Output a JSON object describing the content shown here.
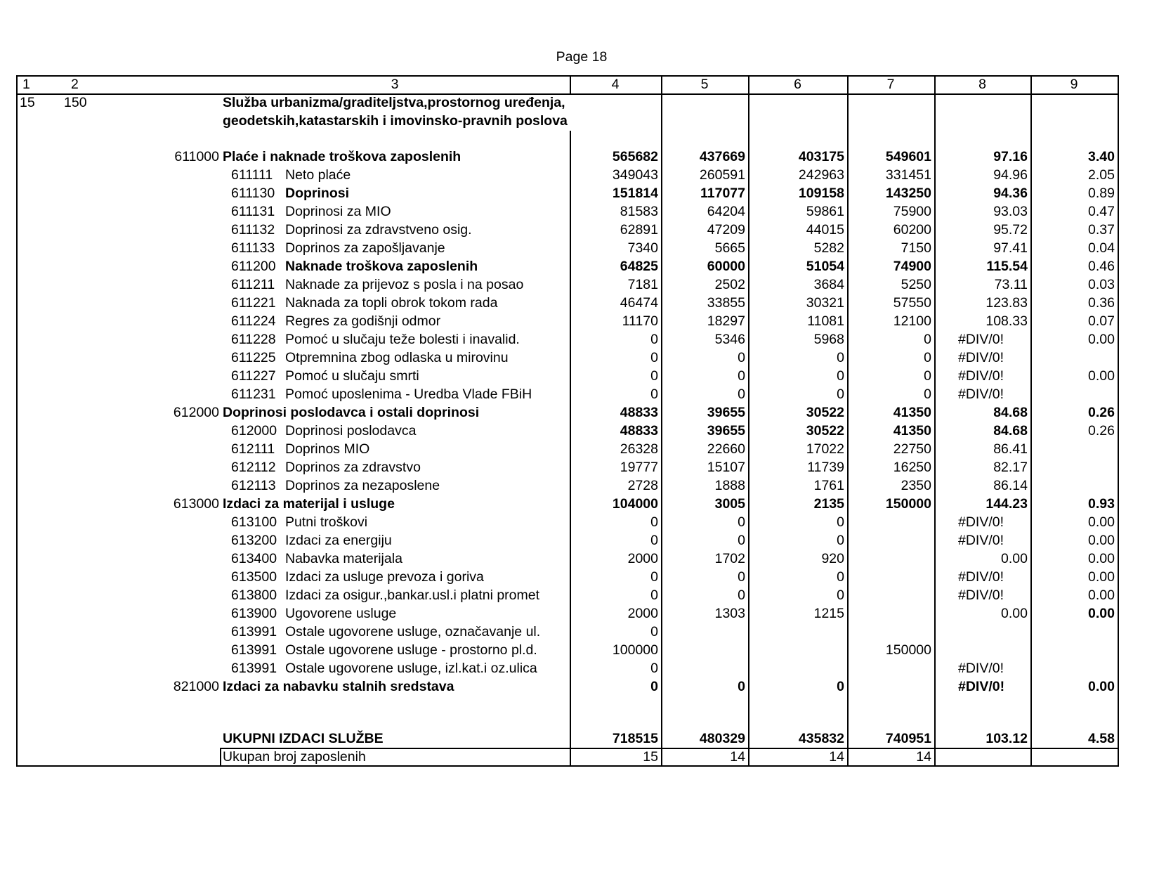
{
  "page_label": "Page 18",
  "header_columns": [
    "1",
    "2",
    "3",
    "4",
    "5",
    "6",
    "7",
    "8",
    "9"
  ],
  "section": {
    "col1": "15",
    "col2": "150",
    "title_line1": "Služba urbanizma/graditeljstva,prostornog uređenja,",
    "title_line2": "geodetskih,katastarskih i imovinsko-pravnih poslova"
  },
  "rows": [
    {
      "code": "611000",
      "label": "Plaće i naknade troškova zaposlenih",
      "level": 0,
      "bold_label": true,
      "values": [
        "565682",
        "437669",
        "403175",
        "549601",
        "97.16",
        "3.40"
      ],
      "bold_values": [
        true,
        true,
        true,
        true,
        true,
        true
      ]
    },
    {
      "code": "611111",
      "label": "Neto  plaće",
      "level": 1,
      "bold_label": false,
      "values": [
        "349043",
        "260591",
        "242963",
        "331451",
        "94.96",
        "2.05"
      ],
      "bold_values": [
        false,
        false,
        false,
        false,
        false,
        false
      ]
    },
    {
      "code": "611130",
      "label": "Doprinosi",
      "level": 1,
      "bold_label": true,
      "values": [
        "151814",
        "117077",
        "109158",
        "143250",
        "94.36",
        "0.89"
      ],
      "bold_values": [
        true,
        true,
        true,
        true,
        true,
        false
      ]
    },
    {
      "code": "611131",
      "label": "Doprinosi za MIO",
      "level": 1,
      "bold_label": false,
      "values": [
        "81583",
        "64204",
        "59861",
        "75900",
        "93.03",
        "0.47"
      ],
      "bold_values": [
        false,
        false,
        false,
        false,
        false,
        false
      ]
    },
    {
      "code": "611132",
      "label": "Doprinosi za zdravstveno osig.",
      "level": 1,
      "bold_label": false,
      "values": [
        "62891",
        "47209",
        "44015",
        "60200",
        "95.72",
        "0.37"
      ],
      "bold_values": [
        false,
        false,
        false,
        false,
        false,
        false
      ]
    },
    {
      "code": "611133",
      "label": "Doprinos za zapošljavanje",
      "level": 1,
      "bold_label": false,
      "values": [
        "7340",
        "5665",
        "5282",
        "7150",
        "97.41",
        "0.04"
      ],
      "bold_values": [
        false,
        false,
        false,
        false,
        false,
        false
      ]
    },
    {
      "code": "611200",
      "label": "Naknade troškova zaposlenih",
      "level": 1,
      "bold_label": true,
      "values": [
        "64825",
        "60000",
        "51054",
        "74900",
        "115.54",
        "0.46"
      ],
      "bold_values": [
        true,
        true,
        true,
        true,
        true,
        false
      ]
    },
    {
      "code": "611211",
      "label": "Naknade za prijevoz s posla i na posao",
      "level": 1,
      "bold_label": false,
      "values": [
        "7181",
        "2502",
        "3684",
        "5250",
        "73.11",
        "0.03"
      ],
      "bold_values": [
        false,
        false,
        false,
        false,
        false,
        false
      ]
    },
    {
      "code": "611221",
      "label": "Naknada za topli obrok tokom rada",
      "level": 1,
      "bold_label": false,
      "values": [
        "46474",
        "33855",
        "30321",
        "57550",
        "123.83",
        "0.36"
      ],
      "bold_values": [
        false,
        false,
        false,
        false,
        false,
        false
      ]
    },
    {
      "code": "611224",
      "label": "Regres za godišnji odmor",
      "level": 1,
      "bold_label": false,
      "values": [
        "11170",
        "18297",
        "11081",
        "12100",
        "108.33",
        "0.07"
      ],
      "bold_values": [
        false,
        false,
        false,
        false,
        false,
        false
      ]
    },
    {
      "code": "611228",
      "label": "Pomoć u slučaju teže bolesti i  inavalid.",
      "level": 1,
      "bold_label": false,
      "values": [
        "0",
        "5346",
        "5968",
        "0",
        "#DIV/0!",
        "0.00"
      ],
      "bold_values": [
        false,
        false,
        false,
        false,
        false,
        false
      ]
    },
    {
      "code": "611225",
      "label": "Otpremnina zbog odlaska u mirovinu",
      "level": 1,
      "bold_label": false,
      "values": [
        "0",
        "0",
        "0",
        "0",
        "#DIV/0!",
        ""
      ],
      "bold_values": [
        false,
        false,
        false,
        false,
        false,
        false
      ]
    },
    {
      "code": "611227",
      "label": "Pomoć u slučaju smrti",
      "level": 1,
      "bold_label": false,
      "values": [
        "0",
        "0",
        "0",
        "0",
        "#DIV/0!",
        "0.00"
      ],
      "bold_values": [
        false,
        false,
        false,
        false,
        false,
        false
      ]
    },
    {
      "code": "611231",
      "label": "Pomoć uposlenima - Uredba Vlade FBiH",
      "level": 1,
      "bold_label": false,
      "values": [
        "0",
        "0",
        "0",
        "0",
        "#DIV/0!",
        ""
      ],
      "bold_values": [
        false,
        false,
        false,
        false,
        false,
        false
      ]
    },
    {
      "code": "612000",
      "label": "Doprinosi poslodavca i ostali doprinosi",
      "level": 0,
      "bold_label": true,
      "values": [
        "48833",
        "39655",
        "30522",
        "41350",
        "84.68",
        "0.26"
      ],
      "bold_values": [
        true,
        true,
        true,
        true,
        true,
        true
      ]
    },
    {
      "code": "612000",
      "label": "Doprinosi poslodavca",
      "level": 1,
      "bold_label": false,
      "values": [
        "48833",
        "39655",
        "30522",
        "41350",
        "84.68",
        "0.26"
      ],
      "bold_values": [
        true,
        true,
        true,
        true,
        true,
        false
      ]
    },
    {
      "code": "612111",
      "label": "Doprinos MIO",
      "level": 1,
      "bold_label": false,
      "values": [
        "26328",
        "22660",
        "17022",
        "22750",
        "86.41",
        ""
      ],
      "bold_values": [
        false,
        false,
        false,
        false,
        false,
        false
      ]
    },
    {
      "code": "612112",
      "label": "Doprinos za zdravstvo",
      "level": 1,
      "bold_label": false,
      "values": [
        "19777",
        "15107",
        "11739",
        "16250",
        "82.17",
        ""
      ],
      "bold_values": [
        false,
        false,
        false,
        false,
        false,
        false
      ]
    },
    {
      "code": "612113",
      "label": "Doprinos za nezaposlene",
      "level": 1,
      "bold_label": false,
      "values": [
        "2728",
        "1888",
        "1761",
        "2350",
        "86.14",
        ""
      ],
      "bold_values": [
        false,
        false,
        false,
        false,
        false,
        false
      ]
    },
    {
      "code": "613000",
      "label": "Izdaci za materijal i usluge",
      "level": 0,
      "bold_label": true,
      "values": [
        "104000",
        "3005",
        "2135",
        "150000",
        "144.23",
        "0.93"
      ],
      "bold_values": [
        true,
        true,
        true,
        true,
        true,
        true
      ]
    },
    {
      "code": "613100",
      "label": "Putni troškovi",
      "level": 1,
      "bold_label": false,
      "values": [
        "0",
        "0",
        "0",
        "",
        "#DIV/0!",
        "0.00"
      ],
      "bold_values": [
        false,
        false,
        false,
        false,
        false,
        false
      ]
    },
    {
      "code": "613200",
      "label": "Izdaci za energiju",
      "level": 1,
      "bold_label": false,
      "values": [
        "0",
        "0",
        "0",
        "",
        "#DIV/0!",
        "0.00"
      ],
      "bold_values": [
        false,
        false,
        false,
        false,
        false,
        false
      ]
    },
    {
      "code": "613400",
      "label": "Nabavka materijala",
      "level": 1,
      "bold_label": false,
      "values": [
        "2000",
        "1702",
        "920",
        "",
        "0.00",
        "0.00"
      ],
      "bold_values": [
        false,
        false,
        false,
        false,
        false,
        false
      ]
    },
    {
      "code": "613500",
      "label": "Izdaci za usluge prevoza i goriva",
      "level": 1,
      "bold_label": false,
      "values": [
        "0",
        "0",
        "0",
        "",
        "#DIV/0!",
        "0.00"
      ],
      "bold_values": [
        false,
        false,
        false,
        false,
        false,
        false
      ]
    },
    {
      "code": "613800",
      "label": "Izdaci za osigur.,bankar.usl.i platni promet",
      "level": 1,
      "bold_label": false,
      "values": [
        "0",
        "0",
        "0",
        "",
        "#DIV/0!",
        "0.00"
      ],
      "bold_values": [
        false,
        false,
        false,
        false,
        false,
        false
      ]
    },
    {
      "code": "613900",
      "label": "Ugovorene usluge",
      "level": 1,
      "bold_label": false,
      "values": [
        "2000",
        "1303",
        "1215",
        "",
        "0.00",
        "0.00"
      ],
      "bold_values": [
        false,
        false,
        false,
        false,
        false,
        true
      ]
    },
    {
      "code": "613991",
      "label": "Ostale ugovorene usluge,  označavanje ul.",
      "level": 1,
      "bold_label": false,
      "values": [
        "0",
        "",
        "",
        "",
        "",
        ""
      ],
      "bold_values": [
        false,
        false,
        false,
        false,
        false,
        false
      ]
    },
    {
      "code": "613991",
      "label": "Ostale ugovorene usluge - prostorno pl.d.",
      "level": 1,
      "bold_label": false,
      "values": [
        "100000",
        "",
        "",
        "150000",
        "",
        ""
      ],
      "bold_values": [
        false,
        false,
        false,
        false,
        false,
        false
      ]
    },
    {
      "code": "613991",
      "label": "Ostale ugovorene usluge, izl.kat.i oz.ulica",
      "level": 1,
      "bold_label": false,
      "values": [
        "0",
        "",
        "",
        "",
        "#DIV/0!",
        ""
      ],
      "bold_values": [
        false,
        false,
        false,
        false,
        false,
        false
      ]
    },
    {
      "code": "821000",
      "label": "Izdaci za nabavku stalnih sredstava",
      "level": 0,
      "bold_label": true,
      "values": [
        "0",
        "0",
        "0",
        "",
        "#DIV/0!",
        "0.00"
      ],
      "bold_values": [
        true,
        true,
        true,
        true,
        true,
        true
      ]
    }
  ],
  "total": {
    "label": "UKUPNI IZDACI SLUŽBE",
    "values": [
      "718515",
      "480329",
      "435832",
      "740951",
      "103.12",
      "4.58"
    ]
  },
  "employees": {
    "label": "Ukupan broj zaposlenih",
    "values": [
      "15",
      "14",
      "14",
      "14",
      "",
      ""
    ]
  }
}
